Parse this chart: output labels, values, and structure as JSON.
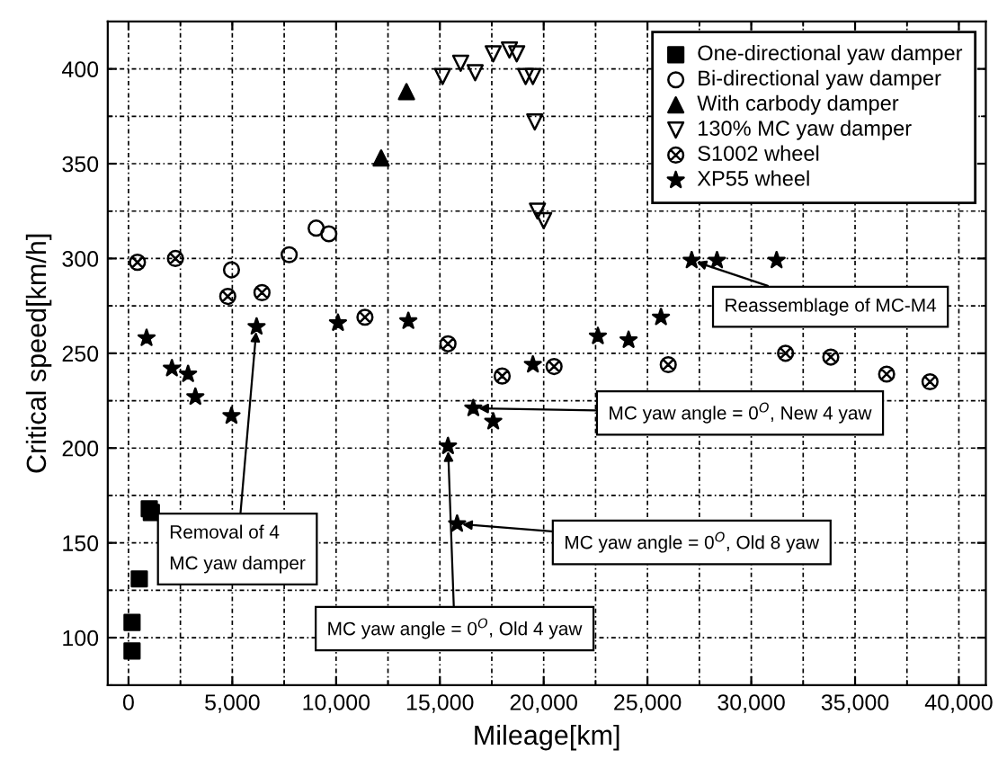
{
  "chart_data": {
    "type": "scatter",
    "xlabel": "Mileage[km]",
    "ylabel": "Critical speed[km/h]",
    "xlim": [
      -1000,
      41300
    ],
    "ylim": [
      75,
      425
    ],
    "xticks": [
      0,
      {
        "value": 5000,
        "label": "5,000"
      },
      {
        "value": 10000,
        "label": "10,000"
      },
      {
        "value": 15000,
        "label": "15,000"
      },
      {
        "value": 20000,
        "label": "20,000"
      },
      {
        "value": 25000,
        "label": "25,000"
      },
      {
        "value": 30000,
        "label": "30,000"
      },
      {
        "value": 35000,
        "label": "35,000"
      },
      {
        "value": 40000,
        "label": "40,000"
      }
    ],
    "yticks": [
      100,
      150,
      200,
      250,
      300,
      350,
      400
    ],
    "grid": true,
    "legend": "top right",
    "series": [
      {
        "name": "One-directional yaw damper",
        "color": "#000000",
        "marker": "square",
        "x": [
          170,
          170,
          520,
          1000,
          1100
        ],
        "values": [
          93,
          108,
          131,
          168,
          166
        ]
      },
      {
        "name": "Bi-directional yaw damper",
        "color": "#000000",
        "marker": "circle",
        "x": [
          4960,
          7740,
          9040,
          9650
        ],
        "values": [
          294,
          302,
          316,
          313
        ]
      },
      {
        "name": "With carbody damper",
        "color": "#000000",
        "marker": "triangle",
        "x": [
          12170,
          13390
        ],
        "values": [
          353,
          388
        ]
      },
      {
        "name": "130% MC yaw damper",
        "color": "#000000",
        "marker": "triangle_down",
        "x": [
          15130,
          16000,
          16700,
          17570,
          18350,
          18700,
          19130,
          19480,
          19570,
          19700,
          20000
        ],
        "values": [
          396,
          403,
          398,
          408,
          410,
          408,
          396,
          396,
          372,
          325,
          320
        ]
      },
      {
        "name": "S1002 wheel",
        "color": "#000000",
        "marker": "cross",
        "x": [
          430,
          2260,
          4780,
          6430,
          11390,
          15390,
          18000,
          20500,
          26000,
          31650,
          33830,
          36520,
          38610
        ],
        "values": [
          298,
          300,
          280,
          282,
          269,
          255,
          238,
          243,
          244,
          250,
          248,
          239,
          235
        ]
      },
      {
        "name": "XP55 wheel",
        "color": "#000000",
        "marker": "star",
        "x": [
          870,
          2090,
          2870,
          3220,
          4960,
          6170,
          10090,
          13480,
          15390,
          15830,
          16610,
          17570,
          19480,
          22610,
          24090,
          25650,
          27130,
          28350,
          31220
        ],
        "values": [
          258,
          242,
          239,
          227,
          217,
          264,
          266,
          267,
          201,
          160,
          221,
          214,
          244,
          259,
          257,
          269,
          299,
          299,
          299
        ]
      }
    ],
    "annotations": [
      {
        "text": "Reassemblage of MC-M4",
        "x": 27130,
        "y": 299
      },
      {
        "text": "MC yaw angle = 0$^{O}$, New 4 yaw",
        "x": 16610,
        "y": 221
      },
      {
        "text": "MC yaw angle = 0$^{O}$, Old 8 yaw",
        "x": 15830,
        "y": 160
      },
      {
        "text": "MC yaw angle = 0$^{O}$, Old 4 yaw",
        "x": 15390,
        "y": 201
      },
      {
        "text": "Removal of 4\nMC yaw damper",
        "x": 6170,
        "y": 264
      }
    ]
  }
}
